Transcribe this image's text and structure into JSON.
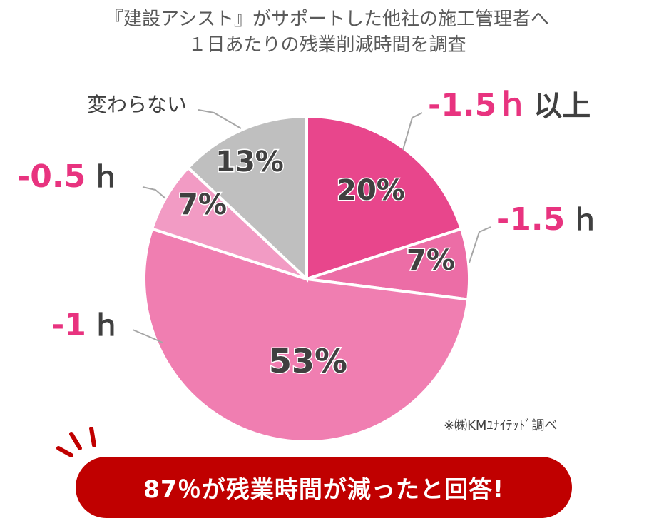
{
  "header": {
    "title_line1": "『建設アシスト』がサポートした他社の施工管理者へ",
    "title_line2": "１日あたりの残業削減時間を調査"
  },
  "chart_data": {
    "type": "pie",
    "slices": [
      {
        "label_num": "-1.5ｈ",
        "label_unit": "以上",
        "value": 20,
        "pct": "20%",
        "color": "#e8468c"
      },
      {
        "label_num": "-1.5",
        "label_unit": "ｈ",
        "value": 7,
        "pct": "7%",
        "color": "#ec6da6"
      },
      {
        "label_num": "-1",
        "label_unit": "ｈ",
        "value": 53,
        "pct": "53%",
        "color": "#f07eb1"
      },
      {
        "label_num": "-0.5",
        "label_unit": "ｈ",
        "value": 7,
        "pct": "7%",
        "color": "#f29bc4"
      },
      {
        "label_num": "",
        "label_unit": "変わらない",
        "value": 13,
        "pct": "13%",
        "color": "#bfbfbf"
      }
    ]
  },
  "note": "※㈱KMﾕﾅｲﾃｯﾄﾞ調べ",
  "banner": "87％が残業時間が減ったと回答!",
  "colors": {
    "accent": "#e8337f",
    "banner": "#c00000"
  }
}
